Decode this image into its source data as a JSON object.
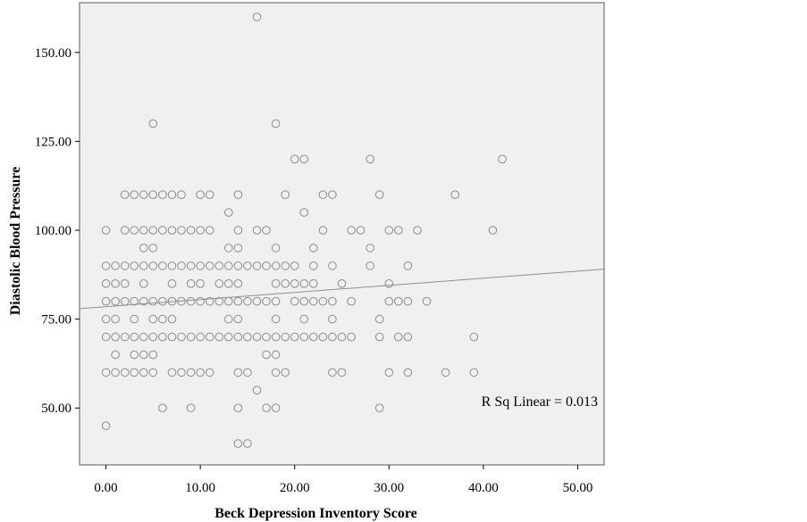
{
  "chart_data": {
    "type": "scatter",
    "title": "",
    "xlabel": "Beck Depression Inventory Score",
    "ylabel": "Diastolic Blood Pressure",
    "xlim": [
      -2.8,
      52.8
    ],
    "ylim": [
      34,
      164
    ],
    "x_ticks": [
      "0.00",
      "10.00",
      "20.00",
      "30.00",
      "40.00",
      "50.00"
    ],
    "x_tick_values": [
      0,
      10,
      20,
      30,
      40,
      50
    ],
    "y_ticks": [
      "50.00",
      "75.00",
      "100.00",
      "125.00",
      "150.00"
    ],
    "y_tick_values": [
      50,
      75,
      100,
      125,
      150
    ],
    "grid": false,
    "plot_background": "#f0f0f0",
    "marker_color": "#8c8c8c",
    "fit_line": {
      "intercept": 78.5,
      "slope": 0.2
    },
    "annotation": "R Sq Linear = 0.013",
    "points": [
      [
        0,
        45
      ],
      [
        0,
        60
      ],
      [
        0,
        70
      ],
      [
        0,
        75
      ],
      [
        0,
        80
      ],
      [
        0,
        85
      ],
      [
        0,
        90
      ],
      [
        0,
        100
      ],
      [
        1,
        60
      ],
      [
        1,
        65
      ],
      [
        1,
        70
      ],
      [
        1,
        75
      ],
      [
        1,
        80
      ],
      [
        1,
        85
      ],
      [
        1,
        90
      ],
      [
        2,
        60
      ],
      [
        2,
        70
      ],
      [
        2,
        80
      ],
      [
        2,
        85
      ],
      [
        2,
        90
      ],
      [
        2,
        100
      ],
      [
        2,
        110
      ],
      [
        3,
        60
      ],
      [
        3,
        65
      ],
      [
        3,
        70
      ],
      [
        3,
        75
      ],
      [
        3,
        80
      ],
      [
        3,
        90
      ],
      [
        3,
        100
      ],
      [
        3,
        110
      ],
      [
        4,
        60
      ],
      [
        4,
        65
      ],
      [
        4,
        70
      ],
      [
        4,
        80
      ],
      [
        4,
        85
      ],
      [
        4,
        90
      ],
      [
        4,
        95
      ],
      [
        4,
        100
      ],
      [
        4,
        110
      ],
      [
        5,
        60
      ],
      [
        5,
        65
      ],
      [
        5,
        70
      ],
      [
        5,
        75
      ],
      [
        5,
        80
      ],
      [
        5,
        90
      ],
      [
        5,
        95
      ],
      [
        5,
        100
      ],
      [
        5,
        110
      ],
      [
        5,
        130
      ],
      [
        6,
        50
      ],
      [
        6,
        70
      ],
      [
        6,
        75
      ],
      [
        6,
        80
      ],
      [
        6,
        90
      ],
      [
        6,
        100
      ],
      [
        6,
        110
      ],
      [
        7,
        60
      ],
      [
        7,
        70
      ],
      [
        7,
        75
      ],
      [
        7,
        80
      ],
      [
        7,
        85
      ],
      [
        7,
        90
      ],
      [
        7,
        100
      ],
      [
        7,
        110
      ],
      [
        8,
        60
      ],
      [
        8,
        70
      ],
      [
        8,
        80
      ],
      [
        8,
        90
      ],
      [
        8,
        100
      ],
      [
        8,
        110
      ],
      [
        9,
        50
      ],
      [
        9,
        60
      ],
      [
        9,
        70
      ],
      [
        9,
        80
      ],
      [
        9,
        85
      ],
      [
        9,
        90
      ],
      [
        9,
        100
      ],
      [
        10,
        60
      ],
      [
        10,
        70
      ],
      [
        10,
        80
      ],
      [
        10,
        85
      ],
      [
        10,
        90
      ],
      [
        10,
        100
      ],
      [
        10,
        110
      ],
      [
        11,
        60
      ],
      [
        11,
        70
      ],
      [
        11,
        80
      ],
      [
        11,
        90
      ],
      [
        11,
        100
      ],
      [
        11,
        110
      ],
      [
        12,
        70
      ],
      [
        12,
        80
      ],
      [
        12,
        85
      ],
      [
        12,
        90
      ],
      [
        13,
        70
      ],
      [
        13,
        75
      ],
      [
        13,
        80
      ],
      [
        13,
        85
      ],
      [
        13,
        90
      ],
      [
        13,
        95
      ],
      [
        13,
        105
      ],
      [
        14,
        40
      ],
      [
        14,
        50
      ],
      [
        14,
        60
      ],
      [
        14,
        70
      ],
      [
        14,
        75
      ],
      [
        14,
        80
      ],
      [
        14,
        85
      ],
      [
        14,
        90
      ],
      [
        14,
        95
      ],
      [
        14,
        100
      ],
      [
        14,
        110
      ],
      [
        15,
        40
      ],
      [
        15,
        60
      ],
      [
        15,
        70
      ],
      [
        15,
        80
      ],
      [
        15,
        90
      ],
      [
        16,
        55
      ],
      [
        16,
        70
      ],
      [
        16,
        80
      ],
      [
        16,
        90
      ],
      [
        16,
        100
      ],
      [
        16,
        160
      ],
      [
        17,
        50
      ],
      [
        17,
        65
      ],
      [
        17,
        70
      ],
      [
        17,
        80
      ],
      [
        17,
        90
      ],
      [
        17,
        100
      ],
      [
        18,
        50
      ],
      [
        18,
        60
      ],
      [
        18,
        65
      ],
      [
        18,
        70
      ],
      [
        18,
        75
      ],
      [
        18,
        80
      ],
      [
        18,
        85
      ],
      [
        18,
        90
      ],
      [
        18,
        95
      ],
      [
        18,
        130
      ],
      [
        19,
        60
      ],
      [
        19,
        70
      ],
      [
        19,
        85
      ],
      [
        19,
        90
      ],
      [
        19,
        110
      ],
      [
        20,
        70
      ],
      [
        20,
        80
      ],
      [
        20,
        85
      ],
      [
        20,
        90
      ],
      [
        20,
        120
      ],
      [
        21,
        70
      ],
      [
        21,
        75
      ],
      [
        21,
        80
      ],
      [
        21,
        85
      ],
      [
        21,
        105
      ],
      [
        21,
        120
      ],
      [
        22,
        70
      ],
      [
        22,
        80
      ],
      [
        22,
        85
      ],
      [
        22,
        90
      ],
      [
        22,
        95
      ],
      [
        23,
        70
      ],
      [
        23,
        80
      ],
      [
        23,
        100
      ],
      [
        23,
        110
      ],
      [
        24,
        60
      ],
      [
        24,
        70
      ],
      [
        24,
        75
      ],
      [
        24,
        80
      ],
      [
        24,
        90
      ],
      [
        24,
        110
      ],
      [
        25,
        60
      ],
      [
        25,
        70
      ],
      [
        25,
        85
      ],
      [
        26,
        70
      ],
      [
        26,
        80
      ],
      [
        26,
        100
      ],
      [
        27,
        100
      ],
      [
        28,
        90
      ],
      [
        28,
        95
      ],
      [
        28,
        120
      ],
      [
        29,
        50
      ],
      [
        29,
        70
      ],
      [
        29,
        75
      ],
      [
        29,
        110
      ],
      [
        30,
        60
      ],
      [
        30,
        80
      ],
      [
        30,
        85
      ],
      [
        30,
        100
      ],
      [
        31,
        70
      ],
      [
        31,
        80
      ],
      [
        31,
        100
      ],
      [
        32,
        60
      ],
      [
        32,
        70
      ],
      [
        32,
        80
      ],
      [
        32,
        90
      ],
      [
        33,
        100
      ],
      [
        34,
        80
      ],
      [
        36,
        60
      ],
      [
        37,
        110
      ],
      [
        39,
        60
      ],
      [
        39,
        70
      ],
      [
        41,
        100
      ],
      [
        42,
        120
      ]
    ]
  }
}
